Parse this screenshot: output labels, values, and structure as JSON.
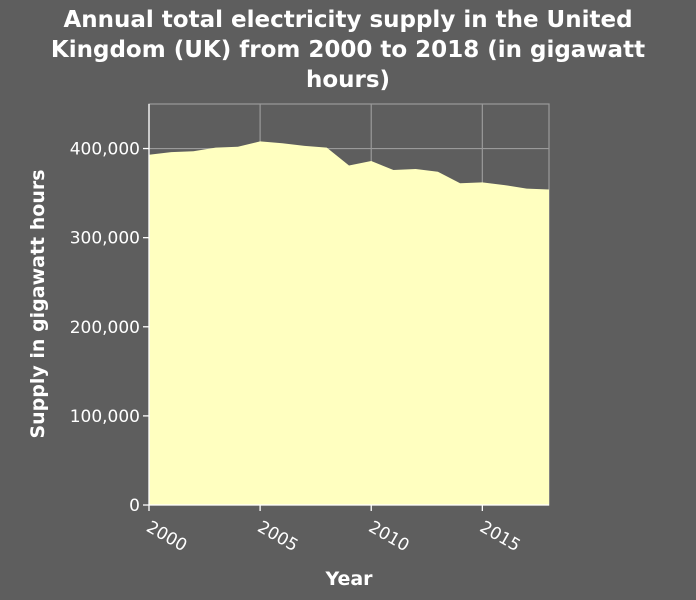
{
  "chart_data": {
    "type": "area",
    "title_lines": [
      "Annual total electricity supply in the United",
      "Kingdom (UK) from 2000 to 2018 (in gigawatt",
      "hours)"
    ],
    "xlabel": "Year",
    "ylabel": "Supply in gigawatt hours",
    "xlim": [
      2000,
      2018
    ],
    "ylim": [
      0,
      450000
    ],
    "x_ticks": [
      2000,
      2005,
      2010,
      2015
    ],
    "x_tick_labels": [
      "2000",
      "2005",
      "2010",
      "2015"
    ],
    "y_ticks": [
      0,
      100000,
      200000,
      300000,
      400000
    ],
    "y_tick_labels": [
      "0",
      "100,000",
      "200,000",
      "300,000",
      "400,000"
    ],
    "grid": true,
    "series": [
      {
        "name": "Electricity supply",
        "color": "#ffffc0",
        "x": [
          2000,
          2001,
          2002,
          2003,
          2004,
          2005,
          2006,
          2007,
          2008,
          2009,
          2010,
          2011,
          2012,
          2013,
          2014,
          2015,
          2016,
          2017,
          2018
        ],
        "values": [
          393000,
          396000,
          397000,
          401000,
          402000,
          408000,
          406000,
          403000,
          401000,
          381000,
          386000,
          376000,
          377000,
          374000,
          361000,
          362000,
          359000,
          355000,
          354000
        ]
      }
    ],
    "colors": {
      "background": "#5e5e5e",
      "grid": "#9a9a9a",
      "text": "#ffffff",
      "fill": "#ffffc0"
    }
  }
}
